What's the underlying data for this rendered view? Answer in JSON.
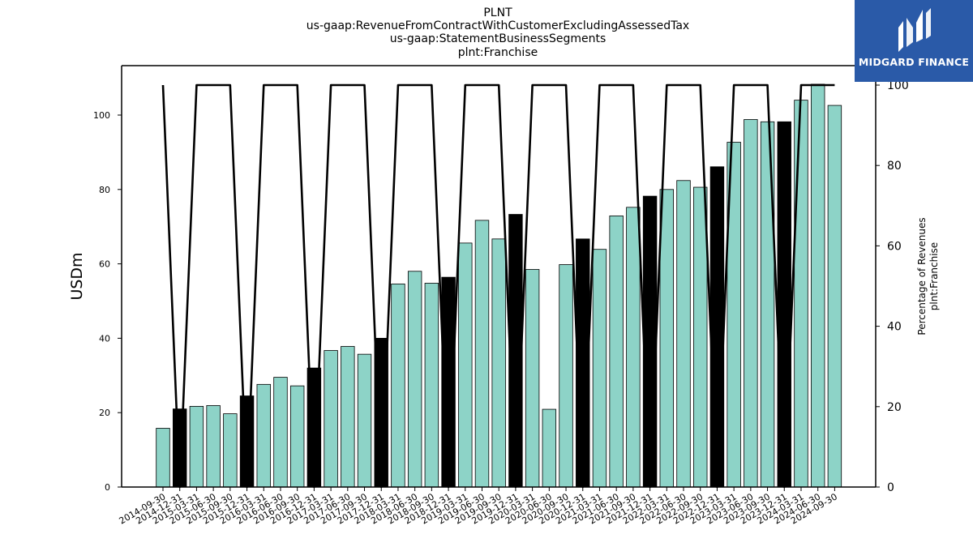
{
  "chart_data": {
    "type": "bar",
    "title_lines": [
      "PLNT",
      "us-gaap:RevenueFromContractWithCustomerExcludingAssessedTax",
      "us-gaap:StatementBusinessSegments",
      "plnt:Franchise"
    ],
    "ylabel": "USDm",
    "ylabel_right": [
      "Percentage of Revenues",
      "plnt:Franchise"
    ],
    "ylim": [
      0,
      113
    ],
    "ylim_right": [
      0,
      100
    ],
    "yticks": [
      0,
      20,
      40,
      60,
      80,
      100
    ],
    "yticks_right": [
      0,
      20,
      40,
      60,
      80,
      100
    ],
    "categories": [
      "2014-09-30",
      "2014-12-31",
      "2015-03-31",
      "2015-06-30",
      "2015-09-30",
      "2015-12-31",
      "2016-03-31",
      "2016-06-30",
      "2016-09-30",
      "2016-12-31",
      "2017-03-31",
      "2017-06-30",
      "2017-09-30",
      "2017-12-31",
      "2018-03-31",
      "2018-06-30",
      "2018-09-30",
      "2018-12-31",
      "2019-03-31",
      "2019-06-30",
      "2019-09-30",
      "2019-12-31",
      "2020-03-31",
      "2020-06-30",
      "2020-09-30",
      "2020-12-31",
      "2021-03-31",
      "2021-06-30",
      "2021-09-30",
      "2021-12-31",
      "2022-03-31",
      "2022-06-30",
      "2022-09-30",
      "2022-12-31",
      "2023-03-31",
      "2023-06-30",
      "2023-09-30",
      "2023-12-31",
      "2024-03-31",
      "2024-06-30",
      "2024-09-30"
    ],
    "series": [
      {
        "values": [
          15.8,
          21.0,
          21.7,
          21.9,
          19.7,
          24.5,
          27.6,
          29.5,
          27.2,
          32.0,
          36.7,
          37.8,
          35.7,
          40.0,
          54.6,
          58.0,
          54.8,
          56.4,
          65.6,
          71.7,
          66.7,
          73.3,
          58.5,
          20.9,
          59.8,
          66.7,
          63.9,
          72.9,
          75.2,
          78.2,
          80.0,
          82.4,
          80.6,
          86.1,
          92.7,
          98.8,
          98.2,
          98.2,
          104.0,
          108.3,
          102.6
        ],
        "colors": [
          "#8dd3c7",
          "#000000",
          "#8dd3c7",
          "#8dd3c7",
          "#8dd3c7",
          "#000000",
          "#8dd3c7",
          "#8dd3c7",
          "#8dd3c7",
          "#000000",
          "#8dd3c7",
          "#8dd3c7",
          "#8dd3c7",
          "#000000",
          "#8dd3c7",
          "#8dd3c7",
          "#8dd3c7",
          "#000000",
          "#8dd3c7",
          "#8dd3c7",
          "#8dd3c7",
          "#000000",
          "#8dd3c7",
          "#8dd3c7",
          "#8dd3c7",
          "#000000",
          "#8dd3c7",
          "#8dd3c7",
          "#8dd3c7",
          "#000000",
          "#8dd3c7",
          "#8dd3c7",
          "#8dd3c7",
          "#000000",
          "#8dd3c7",
          "#8dd3c7",
          "#8dd3c7",
          "#000000",
          "#8dd3c7",
          "#8dd3c7",
          "#8dd3c7"
        ]
      },
      {
        "type": "line",
        "axis": "right",
        "values": [
          100,
          0,
          100,
          100,
          100,
          0,
          100,
          100,
          100,
          0,
          100,
          100,
          100,
          0,
          100,
          100,
          100,
          0,
          100,
          100,
          100,
          0,
          100,
          100,
          100,
          0,
          100,
          100,
          100,
          0,
          100,
          100,
          100,
          0,
          100,
          100,
          100,
          0,
          100,
          100,
          100
        ]
      }
    ],
    "bar_color": "#8dd3c7",
    "highlight_color": "#000000",
    "grid": false
  },
  "logo": {
    "text": "MIDGARD FINANCE",
    "background": "#2a5aa8"
  }
}
